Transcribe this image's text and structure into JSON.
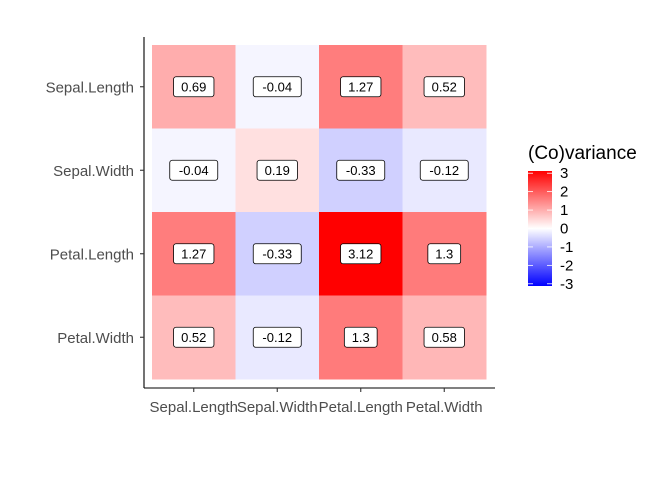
{
  "chart_data": {
    "type": "heatmap",
    "title": "",
    "xlabel": "",
    "ylabel": "",
    "x_categories": [
      "Sepal.Length",
      "Sepal.Width",
      "Petal.Length",
      "Petal.Width"
    ],
    "y_categories": [
      "Sepal.Length",
      "Sepal.Width",
      "Petal.Length",
      "Petal.Width"
    ],
    "values": [
      [
        0.69,
        -0.04,
        1.27,
        0.52
      ],
      [
        -0.04,
        0.19,
        -0.33,
        -0.12
      ],
      [
        1.27,
        -0.33,
        3.12,
        1.3
      ],
      [
        0.52,
        -0.12,
        1.3,
        0.58
      ]
    ],
    "value_labels": [
      [
        "0.69",
        "-0.04",
        "1.27",
        "0.52"
      ],
      [
        "-0.04",
        "0.19",
        "-0.33",
        "-0.12"
      ],
      [
        "1.27",
        "-0.33",
        "3.12",
        "1.3"
      ],
      [
        "0.52",
        "-0.12",
        "1.3",
        "0.58"
      ]
    ],
    "legend": {
      "title": "(Co)variance",
      "placement": "right",
      "ticks": [
        "3",
        "2",
        "1",
        "0",
        "-1",
        "-2",
        "-3"
      ],
      "range": [
        -3.12,
        3.12
      ],
      "colors": {
        "low": "#0000ff",
        "mid": "#ffffff",
        "high": "#ff0000"
      }
    },
    "grid": false
  }
}
